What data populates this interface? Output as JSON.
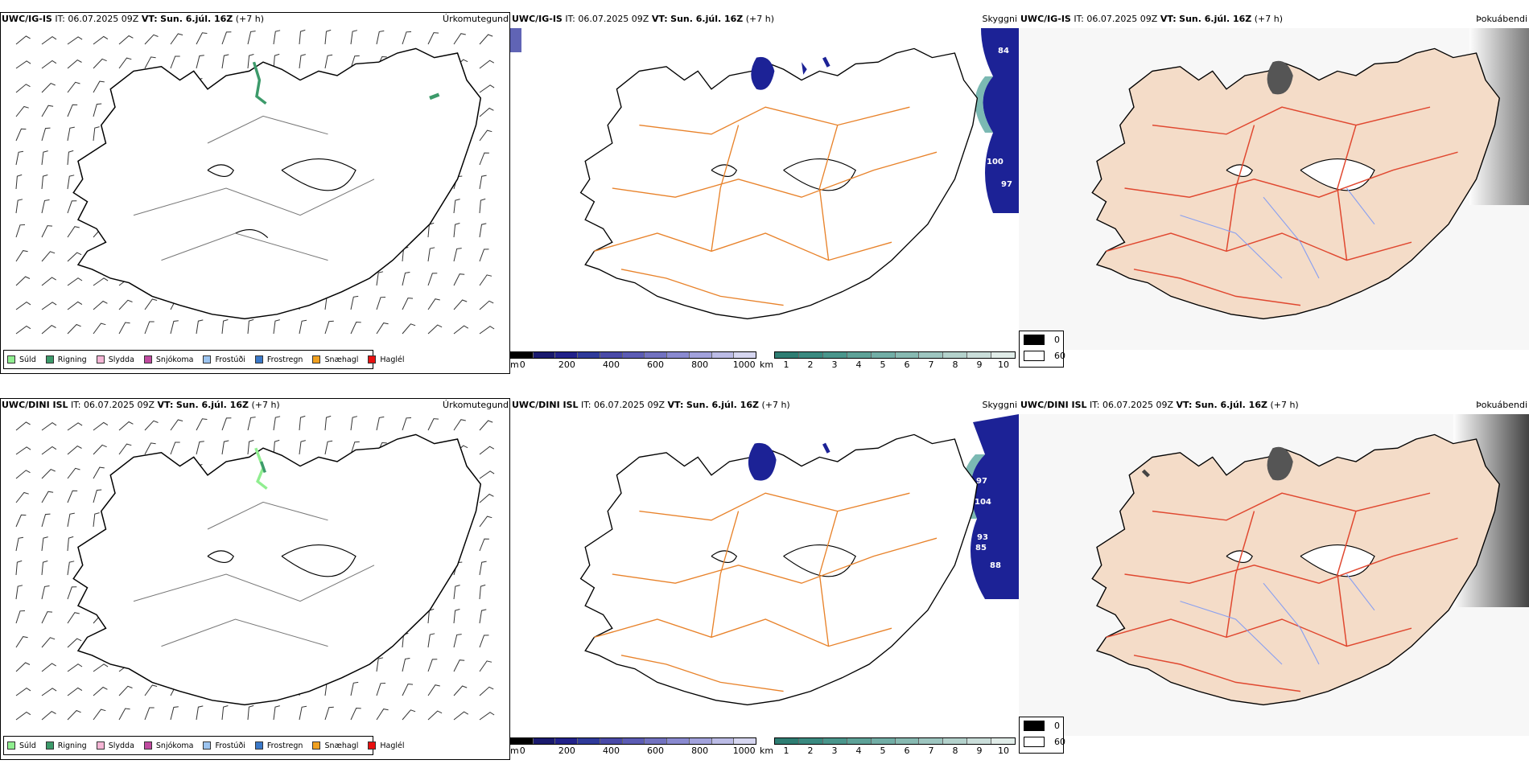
{
  "row1": {
    "model": "UWC/IG-IS",
    "it_label": "IT:",
    "it_value": "06.07.2025 09Z",
    "vt_label": "VT:",
    "vt_value": "Sun. 6.júl. 16Z",
    "lead": "(+7 h)"
  },
  "row2": {
    "model": "UWC/DINI ISL",
    "it_label": "IT:",
    "it_value": "06.07.2025 09Z",
    "vt_label": "VT:",
    "vt_value": "Sun. 6.júl. 16Z",
    "lead": "(+7 h)"
  },
  "fields": {
    "precip_type": "Úrkomutegund",
    "ceiling": "Skyggni",
    "fog": "Þokuábendi"
  },
  "precip_legend": [
    {
      "label": "Súld",
      "color": "#90ee90"
    },
    {
      "label": "Rigning",
      "color": "#3c9a6a"
    },
    {
      "label": "Slydda",
      "color": "#f5b5d5"
    },
    {
      "label": "Snjókoma",
      "color": "#c04aa0"
    },
    {
      "label": "Frostúði",
      "color": "#9cc4f0"
    },
    {
      "label": "Frostregn",
      "color": "#3a78c8"
    },
    {
      "label": "Snæhagl",
      "color": "#f0a020"
    },
    {
      "label": "Haglél",
      "color": "#e81010"
    }
  ],
  "ceiling_bar": {
    "unit": "m",
    "ticks": [
      "0",
      "200",
      "400",
      "600",
      "800",
      "1000"
    ],
    "colors": [
      "#000000",
      "#1a1a6e",
      "#22228a",
      "#2f3a9a",
      "#4a4aa8",
      "#5c5cb4",
      "#7272c0",
      "#8a8ad0",
      "#a2a2dc",
      "#bcbce6",
      "#d6d6f0"
    ]
  },
  "visibility_bar": {
    "unit": "km",
    "ticks": [
      "1",
      "2",
      "3",
      "4",
      "5",
      "6",
      "7",
      "8",
      "9",
      "10"
    ],
    "colors": [
      "#2e7d72",
      "#3a8a80",
      "#4a968c",
      "#5ea298",
      "#72aea6",
      "#88bab2",
      "#9ec6c0",
      "#b4d2cc",
      "#cadeda",
      "#e0ece8"
    ]
  },
  "fog_legend": [
    {
      "label": "0",
      "color": "#000000"
    },
    {
      "label": "60",
      "color": "#ffffff"
    }
  ],
  "ceiling_values_row1": [
    "84",
    "100",
    "97"
  ],
  "ceiling_values_row2": [
    "97",
    "104",
    "93",
    "85",
    "88"
  ],
  "colors": {
    "road_orange": "#e8822a",
    "road_red": "#e04830",
    "land_fog": "#f4dcc8",
    "river_blue": "#8aa0f0",
    "ceiling_navy": "#1c2296",
    "sea_teal": "#5aa8a0"
  }
}
